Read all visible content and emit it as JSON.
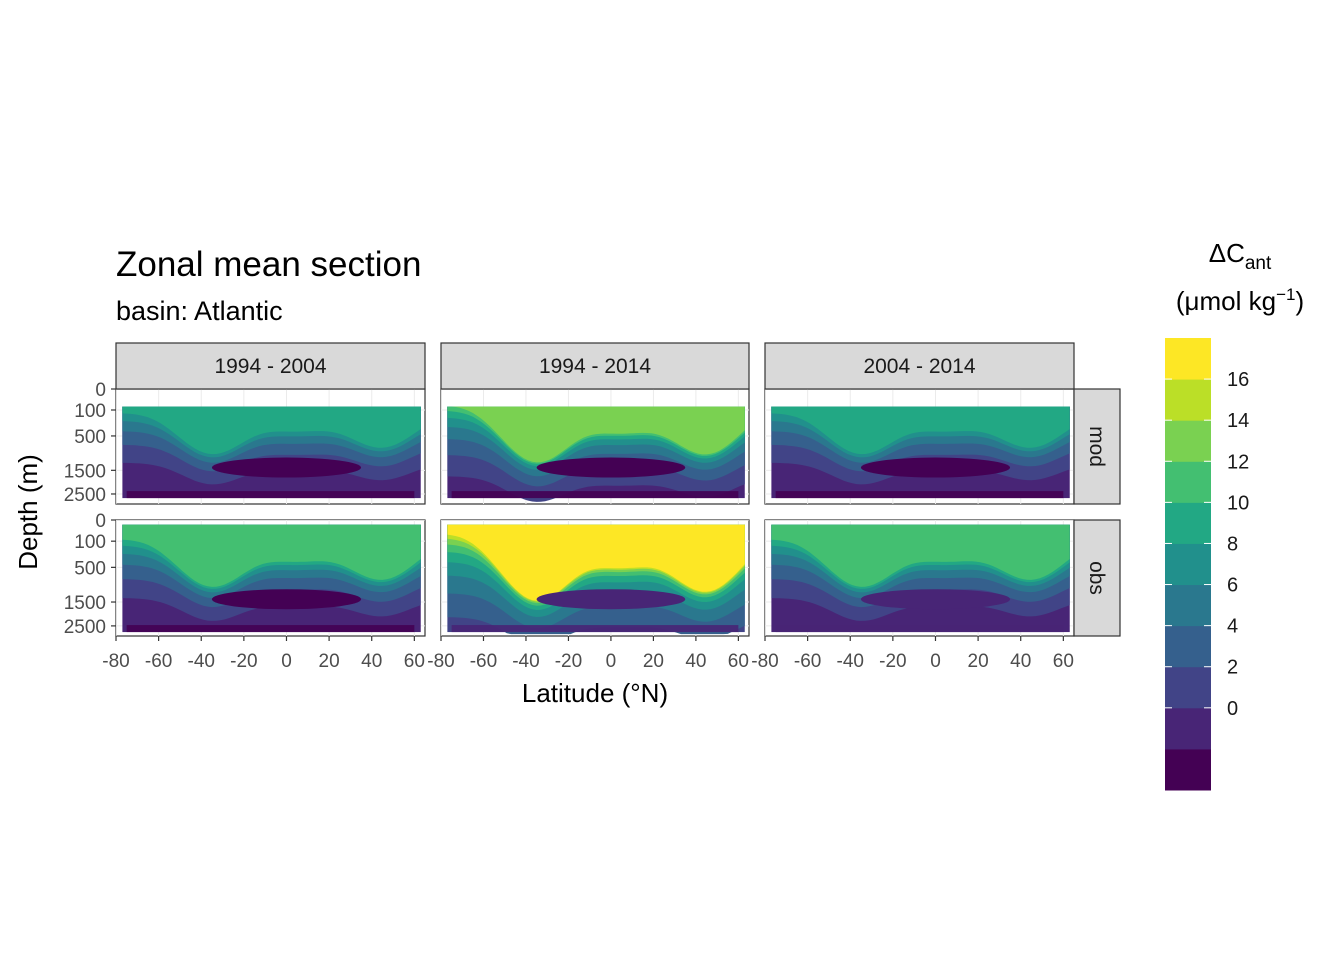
{
  "chart_data": {
    "type": "heatmap",
    "title": "Zonal mean section",
    "subtitle": "basin: Atlantic",
    "xlabel": "Latitude (°N)",
    "ylabel": "Depth (m)",
    "legend": {
      "title_main": "ΔC",
      "title_sub": "ant",
      "unit_open": "(μmol kg",
      "unit_sup": "−1",
      "unit_close": ")",
      "placement": "right",
      "breaks": [
        "16",
        "14",
        "12",
        "10",
        "8",
        "6",
        "4",
        "2",
        "0"
      ],
      "colors": [
        "#440154",
        "#482576",
        "#414487",
        "#35608D",
        "#2A788E",
        "#21908C",
        "#22A884",
        "#43BF71",
        "#7AD151",
        "#BBDF27",
        "#FDE725"
      ]
    },
    "x_ticks": [
      "-80",
      "-60",
      "-40",
      "-20",
      "0",
      "20",
      "40",
      "60"
    ],
    "x_range": [
      -80,
      65
    ],
    "y_ticks": [
      "0",
      "100",
      "500",
      "1500",
      "2500"
    ],
    "y_range": [
      0,
      3000
    ],
    "y_scale": "reversed sqrt",
    "column_facets": [
      "1994 - 2004",
      "1994 - 2014",
      "2004 - 2014"
    ],
    "row_facets": [
      "mod",
      "obs"
    ],
    "grid": true
  }
}
